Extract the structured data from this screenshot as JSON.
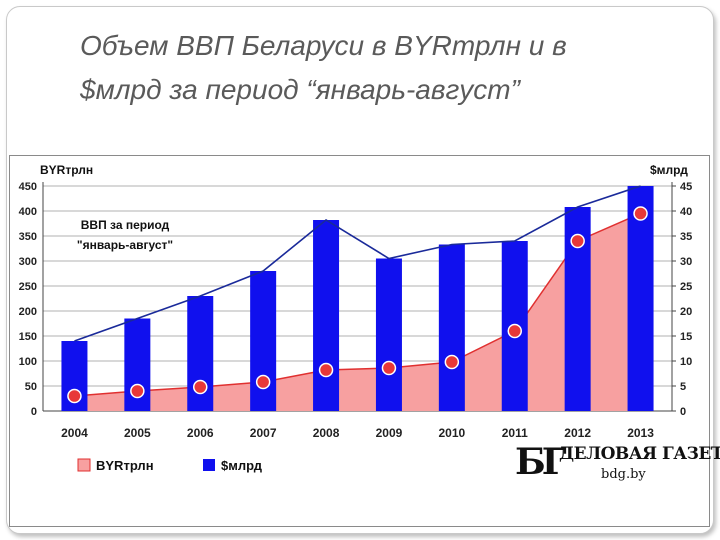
{
  "slide": {
    "title_line1": "Объем ВВП Беларуси в BYRтрлн и в",
    "title_line2": "$млрд за период “январь-август”"
  },
  "logo": {
    "name": "ДЕЛОВАЯ ГАЗЕТА",
    "url": "bdg.by"
  },
  "colors": {
    "bar": "#1010ee",
    "area_fill": "#f7a0a0",
    "area_line": "#e03030",
    "marker": "#e83838",
    "usd_line": "#1a2a9a",
    "grid": "#b0b0b0"
  },
  "chart_data": {
    "type": "bar",
    "annotation_line1": "ВВП за период",
    "annotation_line2": "\"январь-август\"",
    "left_axis_label": "BYRтрлн",
    "right_axis_label": "$млрд",
    "categories": [
      "2004",
      "2005",
      "2006",
      "2007",
      "2008",
      "2009",
      "2010",
      "2011",
      "2012",
      "2013"
    ],
    "left_ylim": [
      0,
      450
    ],
    "left_ticks": [
      "0",
      "50",
      "100",
      "150",
      "200",
      "250",
      "300",
      "350",
      "400",
      "450"
    ],
    "right_ylim": [
      0,
      45
    ],
    "right_ticks": [
      "0",
      "5",
      "10",
      "15",
      "20",
      "25",
      "30",
      "35",
      "40",
      "45"
    ],
    "grid": true,
    "legend_position": "bottom-left",
    "series": [
      {
        "name": "BYRтрлн",
        "kind": "area",
        "axis": "left",
        "values": [
          30,
          40,
          48,
          58,
          82,
          86,
          98,
          160,
          340,
          395
        ]
      },
      {
        "name": "$млрд",
        "kind": "bar",
        "axis": "right",
        "values": [
          14,
          18.5,
          23,
          28,
          38.2,
          30.5,
          33.3,
          34,
          40.8,
          45
        ]
      },
      {
        "kind": "line",
        "axis": "right",
        "values": [
          14,
          18.5,
          23,
          28,
          38.2,
          30.5,
          33.3,
          34,
          40.8,
          45
        ]
      }
    ]
  }
}
